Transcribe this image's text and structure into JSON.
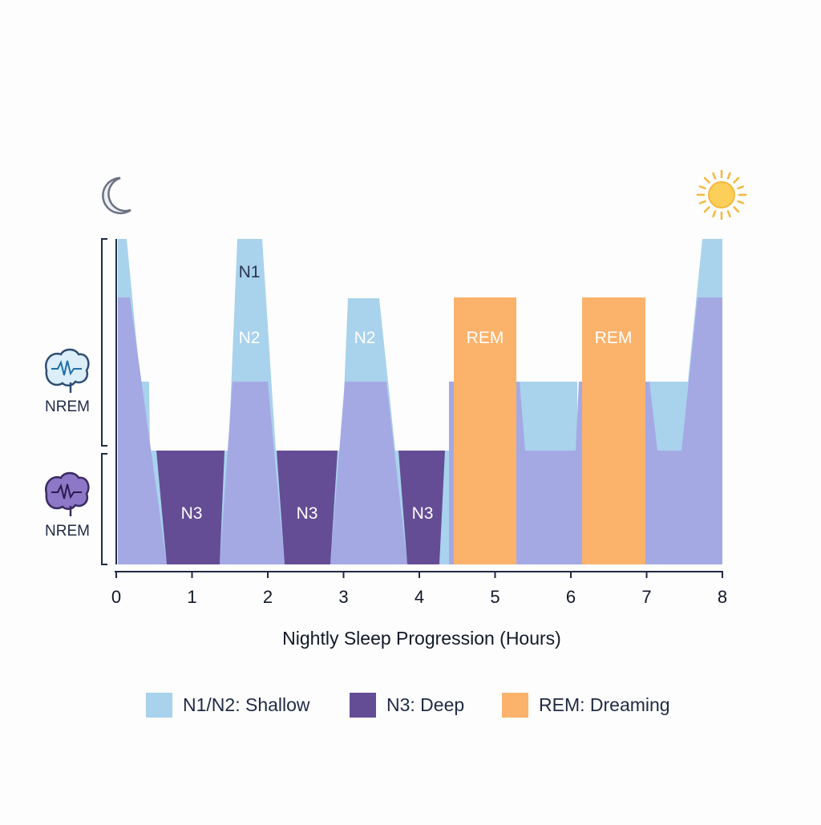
{
  "chart_data": {
    "type": "area",
    "xlabel": "Nightly Sleep Progression (Hours)",
    "ylabel": "",
    "xlim": [
      0,
      8
    ],
    "x_ticks": [
      0,
      1,
      2,
      3,
      4,
      5,
      6,
      7,
      8
    ],
    "levels": [
      "N3",
      "N2-low",
      "N2",
      "N1"
    ],
    "y_group_labels": [
      "NREM",
      "NREM"
    ],
    "colors": {
      "shallow": "#a9d2ec",
      "base": "#a4a9e4",
      "deep": "#654d96",
      "rem": "#fbb26b",
      "axis": "#1f2a44"
    },
    "icons": {
      "start": "moon-icon",
      "end": "sun-icon",
      "nrem_upper": "brain-wave-icon",
      "nrem_lower": "brain-wave-icon"
    },
    "segments": [
      {
        "stage": "N3",
        "x": [
          0.7,
          1.4
        ],
        "label": "N3"
      },
      {
        "stage": "N3",
        "x": [
          2.2,
          2.85
        ],
        "label": "N3"
      },
      {
        "stage": "N3",
        "x": [
          3.7,
          4.25
        ],
        "label": "N3"
      },
      {
        "stage": "REM",
        "x": [
          4.45,
          5.3
        ],
        "label": "REM"
      },
      {
        "stage": "REM",
        "x": [
          6.15,
          7.0
        ],
        "label": "REM"
      }
    ],
    "stage_labels": [
      {
        "text": "N1",
        "x": 1.77,
        "level": "N1"
      },
      {
        "text": "N2",
        "x": 1.77,
        "level": "N2"
      },
      {
        "text": "N2",
        "x": 3.3,
        "level": "N2"
      }
    ],
    "legend": [
      {
        "label": "N1/N2: Shallow",
        "color": "#a9d2ec"
      },
      {
        "label": "N3: Deep",
        "color": "#654d96"
      },
      {
        "label": "REM: Dreaming",
        "color": "#fbb26b"
      }
    ]
  }
}
